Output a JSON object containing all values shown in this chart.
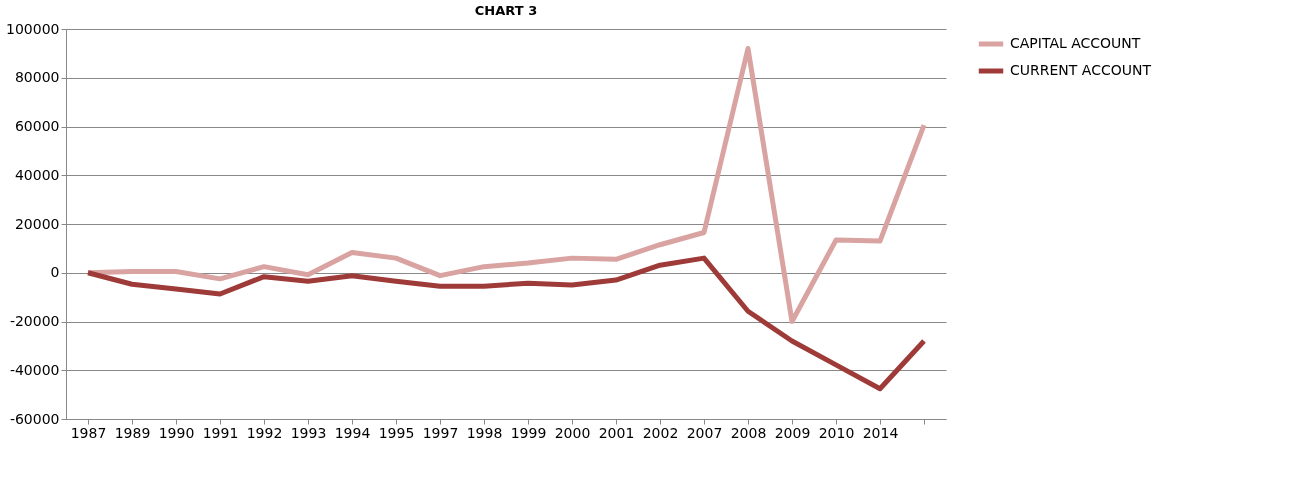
{
  "chart_data": {
    "type": "line",
    "title": "CHART 3",
    "categories": [
      "1987",
      "1989",
      "1990",
      "1991",
      "1992",
      "1993",
      "1994",
      "1995",
      "1997",
      "1998",
      "1999",
      "2000",
      "2001",
      "2002",
      "2007",
      "2008",
      "2009",
      "2010",
      "2014",
      null
    ],
    "series": [
      {
        "name": "CAPITAL ACCOUNT",
        "color": "#d9a3a2",
        "values": [
          0,
          500,
          500,
          -2500,
          2500,
          -800,
          8300,
          6000,
          -1200,
          2500,
          4000,
          6000,
          5500,
          11500,
          16500,
          92000,
          -20000,
          13400,
          13000,
          60600
        ]
      },
      {
        "name": "CURRENT ACCOUNT",
        "color": "#9e3a38",
        "values": [
          0,
          -4700,
          -6700,
          -8700,
          -1600,
          -3500,
          -1200,
          -3500,
          -5500,
          -5500,
          -4300,
          -5000,
          -3000,
          3100,
          6000,
          -15800,
          -28000,
          -37800,
          -47600,
          -28000
        ]
      }
    ],
    "ylim": [
      -60000,
      100000
    ],
    "yticks": [
      -60000,
      -40000,
      -20000,
      0,
      20000,
      40000,
      60000,
      80000,
      100000
    ],
    "grid": "y",
    "legend": "right",
    "marker": "none",
    "line_style": "solid"
  }
}
